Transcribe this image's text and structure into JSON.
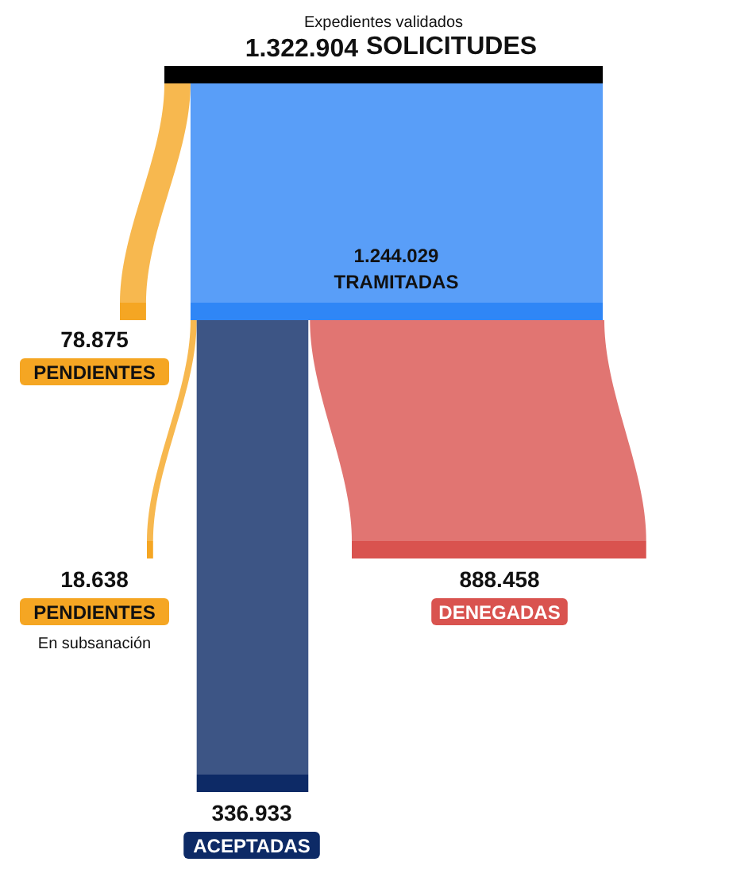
{
  "chart_data": {
    "type": "other",
    "categories": [
      "SOLICITUDES",
      "TRAMITADAS",
      "PENDIENTES",
      "PENDIENTES",
      "DENEGADAS",
      "ACEPTADAS"
    ],
    "values": [
      1322904,
      1244029,
      78875,
      18638,
      888458,
      336933
    ],
    "value_labels": [
      "1.322.904",
      "1.244.029",
      "78.875",
      "18.638",
      "888.458",
      "336.933"
    ],
    "colors": [
      "#000000",
      "#2f86f6",
      "#f5a623",
      "#f5a623",
      "#d9534f",
      "#0d2a66"
    ],
    "annotations": [
      "Expedientes validados",
      "En subsanación"
    ]
  }
}
